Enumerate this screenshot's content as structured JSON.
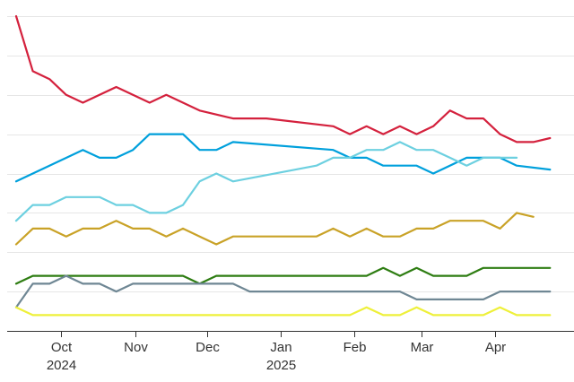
{
  "chart_data": {
    "type": "line",
    "title": "",
    "xlabel": "",
    "ylabel": "",
    "grid": true,
    "x_ticks": [
      {
        "date": "2024-10-01",
        "label": "Oct",
        "sublabel": "2024"
      },
      {
        "date": "2024-11-01",
        "label": "Nov",
        "sublabel": ""
      },
      {
        "date": "2024-12-01",
        "label": "Dec",
        "sublabel": ""
      },
      {
        "date": "2025-01-01",
        "label": "Jan",
        "sublabel": "2025"
      },
      {
        "date": "2025-02-01",
        "label": "Feb",
        "sublabel": ""
      },
      {
        "date": "2025-03-01",
        "label": "Mar",
        "sublabel": ""
      },
      {
        "date": "2025-04-01",
        "label": "Apr",
        "sublabel": ""
      }
    ],
    "x_range": [
      "2024-09-12",
      "2025-04-19"
    ],
    "ylim": [
      0,
      40
    ],
    "y_gridlines": [
      0,
      5,
      10,
      15,
      20,
      25,
      30,
      35,
      40
    ],
    "series": [
      {
        "color": "#d4213d",
        "points": [
          [
            "2024-09-12",
            40
          ],
          [
            "2024-09-19",
            33
          ],
          [
            "2024-09-26",
            32
          ],
          [
            "2024-10-03",
            30
          ],
          [
            "2024-10-10",
            29
          ],
          [
            "2024-10-24",
            31
          ],
          [
            "2024-11-07",
            29
          ],
          [
            "2024-11-14",
            30
          ],
          [
            "2024-11-28",
            28
          ],
          [
            "2024-12-12",
            27
          ],
          [
            "2024-12-26",
            27
          ],
          [
            "2025-01-23",
            26
          ],
          [
            "2025-01-30",
            25
          ],
          [
            "2025-02-06",
            26
          ],
          [
            "2025-02-13",
            25
          ],
          [
            "2025-02-20",
            26
          ],
          [
            "2025-02-27",
            25
          ],
          [
            "2025-03-06",
            26
          ],
          [
            "2025-03-13",
            28
          ],
          [
            "2025-03-20",
            27
          ],
          [
            "2025-03-27",
            27
          ],
          [
            "2025-04-03",
            25
          ],
          [
            "2025-04-10",
            24
          ],
          [
            "2025-04-17",
            24
          ],
          [
            "2025-04-24",
            24.5
          ]
        ]
      },
      {
        "color": "#00a0dc",
        "points": [
          [
            "2024-09-12",
            19
          ],
          [
            "2024-09-19",
            20
          ],
          [
            "2024-10-10",
            23
          ],
          [
            "2024-10-17",
            22
          ],
          [
            "2024-10-24",
            22
          ],
          [
            "2024-10-31",
            23
          ],
          [
            "2024-11-07",
            25
          ],
          [
            "2024-11-21",
            25
          ],
          [
            "2024-11-28",
            23
          ],
          [
            "2024-12-05",
            23
          ],
          [
            "2024-12-12",
            24
          ],
          [
            "2025-01-23",
            23
          ],
          [
            "2025-01-30",
            22
          ],
          [
            "2025-02-06",
            22
          ],
          [
            "2025-02-13",
            21
          ],
          [
            "2025-02-27",
            21
          ],
          [
            "2025-03-06",
            20
          ],
          [
            "2025-03-20",
            22
          ],
          [
            "2025-04-03",
            22
          ],
          [
            "2025-04-10",
            21
          ],
          [
            "2025-04-24",
            20.5
          ]
        ]
      },
      {
        "color": "#6dd0e0",
        "points": [
          [
            "2024-09-12",
            14
          ],
          [
            "2024-09-19",
            16
          ],
          [
            "2024-09-26",
            16
          ],
          [
            "2024-10-03",
            17
          ],
          [
            "2024-10-17",
            17
          ],
          [
            "2024-10-24",
            16
          ],
          [
            "2024-10-31",
            16
          ],
          [
            "2024-11-07",
            15
          ],
          [
            "2024-11-14",
            15
          ],
          [
            "2024-11-21",
            16
          ],
          [
            "2024-11-28",
            19
          ],
          [
            "2024-12-05",
            20
          ],
          [
            "2024-12-12",
            19
          ],
          [
            "2025-01-16",
            21
          ],
          [
            "2025-01-23",
            22
          ],
          [
            "2025-01-30",
            22
          ],
          [
            "2025-02-06",
            23
          ],
          [
            "2025-02-13",
            23
          ],
          [
            "2025-02-20",
            24
          ],
          [
            "2025-02-27",
            23
          ],
          [
            "2025-03-06",
            23
          ],
          [
            "2025-03-13",
            22
          ],
          [
            "2025-03-20",
            21
          ],
          [
            "2025-03-27",
            22
          ],
          [
            "2025-04-03",
            22
          ],
          [
            "2025-04-10",
            22
          ]
        ]
      },
      {
        "color": "#c9a227",
        "points": [
          [
            "2024-09-12",
            11
          ],
          [
            "2024-09-19",
            13
          ],
          [
            "2024-09-26",
            13
          ],
          [
            "2024-10-03",
            12
          ],
          [
            "2024-10-10",
            13
          ],
          [
            "2024-10-17",
            13
          ],
          [
            "2024-10-24",
            14
          ],
          [
            "2024-10-31",
            13
          ],
          [
            "2024-11-07",
            13
          ],
          [
            "2024-11-14",
            12
          ],
          [
            "2024-11-21",
            13
          ],
          [
            "2024-11-28",
            12
          ],
          [
            "2024-12-05",
            11
          ],
          [
            "2024-12-12",
            12
          ],
          [
            "2025-01-16",
            12
          ],
          [
            "2025-01-23",
            13
          ],
          [
            "2025-01-30",
            12
          ],
          [
            "2025-02-06",
            13
          ],
          [
            "2025-02-13",
            12
          ],
          [
            "2025-02-20",
            12
          ],
          [
            "2025-02-27",
            13
          ],
          [
            "2025-03-06",
            13
          ],
          [
            "2025-03-13",
            14
          ],
          [
            "2025-03-20",
            14
          ],
          [
            "2025-03-27",
            14
          ],
          [
            "2025-04-03",
            13
          ],
          [
            "2025-04-10",
            15
          ],
          [
            "2025-04-17",
            14.5
          ]
        ]
      },
      {
        "color": "#2e7d12",
        "points": [
          [
            "2024-09-12",
            6
          ],
          [
            "2024-09-19",
            7
          ],
          [
            "2024-11-21",
            7
          ],
          [
            "2024-11-28",
            6
          ],
          [
            "2024-12-05",
            7
          ],
          [
            "2025-02-06",
            7
          ],
          [
            "2025-02-13",
            8
          ],
          [
            "2025-02-20",
            7
          ],
          [
            "2025-02-27",
            8
          ],
          [
            "2025-03-06",
            7
          ],
          [
            "2025-03-20",
            7
          ],
          [
            "2025-03-27",
            8
          ],
          [
            "2025-04-24",
            8
          ]
        ]
      },
      {
        "color": "#6f8794",
        "points": [
          [
            "2024-09-12",
            3
          ],
          [
            "2024-09-19",
            6
          ],
          [
            "2024-09-26",
            6
          ],
          [
            "2024-10-03",
            7
          ],
          [
            "2024-10-10",
            6
          ],
          [
            "2024-10-17",
            6
          ],
          [
            "2024-10-24",
            5
          ],
          [
            "2024-10-31",
            6
          ],
          [
            "2024-11-28",
            6
          ],
          [
            "2024-12-12",
            6
          ],
          [
            "2024-12-19",
            5
          ],
          [
            "2025-02-13",
            5
          ],
          [
            "2025-02-20",
            5
          ],
          [
            "2025-02-27",
            4
          ],
          [
            "2025-03-06",
            4
          ],
          [
            "2025-03-27",
            4
          ],
          [
            "2025-04-03",
            5
          ],
          [
            "2025-04-24",
            5
          ]
        ]
      },
      {
        "color": "#eef03a",
        "points": [
          [
            "2024-09-12",
            3
          ],
          [
            "2024-09-19",
            2
          ],
          [
            "2025-01-30",
            2
          ],
          [
            "2025-02-06",
            3
          ],
          [
            "2025-02-13",
            2
          ],
          [
            "2025-02-20",
            2
          ],
          [
            "2025-02-27",
            3
          ],
          [
            "2025-03-06",
            2
          ],
          [
            "2025-03-27",
            2
          ],
          [
            "2025-04-03",
            3
          ],
          [
            "2025-04-10",
            2
          ],
          [
            "2025-04-24",
            2
          ]
        ]
      }
    ]
  }
}
